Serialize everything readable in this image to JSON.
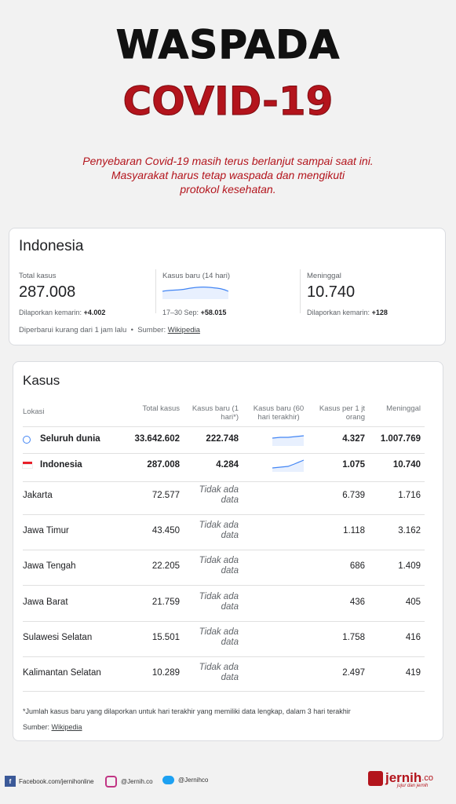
{
  "header": {
    "title_1": "WASPADA",
    "title_2": "COVID-19",
    "intro": [
      "Penyebaran Covid-19 masih terus berlanjut sampai saat ini.",
      "Masyarakat harus tetap waspada dan mengikuti",
      "protokol kesehatan."
    ]
  },
  "summary": {
    "country": "Indonesia",
    "stats": [
      {
        "label": "Total kasus",
        "value": "287.008",
        "note_label": "Dilaporkan kemarin:",
        "note_value": "+4.002"
      },
      {
        "label": "Kasus baru (14 hari)",
        "note_label": "17–30 Sep:",
        "note_value": "+58.015"
      },
      {
        "label": "Meninggal",
        "value": "10.740",
        "note_label": "Dilaporkan kemarin:",
        "note_value": "+128"
      }
    ],
    "updated": "Diperbarui kurang dari 1 jam lalu",
    "source_label": "Sumber:",
    "source_link": "Wikipedia"
  },
  "table": {
    "title": "Kasus",
    "columns": [
      "Lokasi",
      "Total kasus",
      "Kasus baru (1 hari*)",
      "Kasus baru (60 hari terakhir)",
      "Kasus per 1 jt orang",
      "Meninggal"
    ],
    "rows": [
      [
        "Seluruh dunia",
        "33.642.602",
        "222.748",
        "4.327",
        "1.007.769"
      ],
      [
        "Indonesia",
        "287.008",
        "4.284",
        "1.075",
        "10.740"
      ],
      [
        "Jakarta",
        "72.577",
        "Tidak ada data",
        "6.739",
        "1.716"
      ],
      [
        "Jawa Timur",
        "43.450",
        "Tidak ada data",
        "1.118",
        "3.162"
      ],
      [
        "Jawa Tengah",
        "22.205",
        "Tidak ada data",
        "686",
        "1.409"
      ],
      [
        "Jawa Barat",
        "21.759",
        "Tidak ada data",
        "436",
        "405"
      ],
      [
        "Sulawesi Selatan",
        "15.501",
        "Tidak ada data",
        "1.758",
        "416"
      ],
      [
        "Kalimantan Selatan",
        "10.289",
        "Tidak ada data",
        "2.497",
        "419"
      ]
    ],
    "footnote": "*Jumlah kasus baru yang dilaporkan untuk hari terakhir yang memiliki data lengkap, dalam 3 hari terakhir",
    "source_label": "Sumber:",
    "source_link": "Wikipedia"
  },
  "footer": {
    "facebook": "Facebook.com/jernihonline",
    "instagram": "@Jernih.co",
    "twitter": "@Jernihco",
    "brand": "jernih",
    "brand_suffix": ".co",
    "tagline": "jujur dan jernih"
  }
}
